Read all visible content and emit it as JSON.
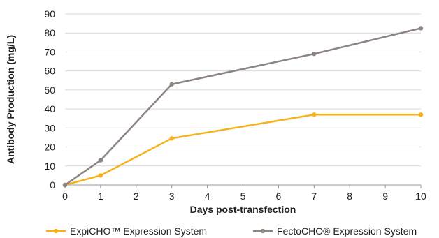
{
  "chart_data": {
    "type": "line",
    "xlabel": "Days post-transfection",
    "ylabel": "Antibody Production  (mg/L)",
    "xlim": [
      0,
      10
    ],
    "ylim": [
      0,
      90
    ],
    "x_ticks": [
      "0",
      "1",
      "2",
      "3",
      "4",
      "5",
      "6",
      "7",
      "8",
      "9",
      "10"
    ],
    "y_ticks": [
      "0",
      "10",
      "20",
      "30",
      "40",
      "50",
      "60",
      "70",
      "80",
      "90"
    ],
    "grid": "horizontal",
    "legend_position": "bottom",
    "series": [
      {
        "name": "ExpiCHO™ Expression System",
        "color": "#F5B21B",
        "points": [
          [
            0,
            0
          ],
          [
            1,
            5
          ],
          [
            3,
            24.5
          ],
          [
            7,
            37
          ],
          [
            10,
            37
          ]
        ]
      },
      {
        "name": "FectoCHO® Expression System",
        "color": "#8C8480",
        "points": [
          [
            0,
            0
          ],
          [
            1,
            13
          ],
          [
            3,
            53
          ],
          [
            7,
            69
          ],
          [
            10,
            82.5
          ]
        ]
      }
    ]
  }
}
